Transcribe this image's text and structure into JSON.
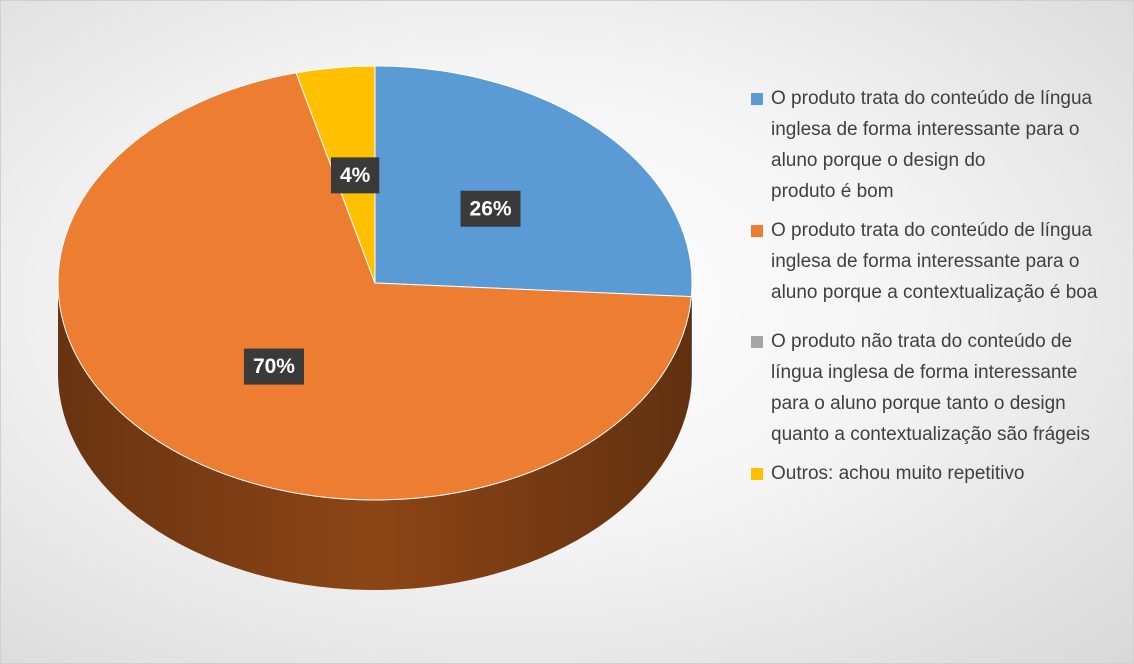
{
  "chart_data": {
    "type": "pie",
    "categories": [
      "O produto trata do conteúdo de língua inglesa de forma interessante para o aluno porque o design do\nproduto é bom",
      "O produto trata do conteúdo de língua inglesa de forma interessante para o aluno porque a contextualização é boa",
      "O produto não trata do conteúdo de língua inglesa de forma interessante para o aluno porque tanto o design quanto a contextualização são frágeis",
      "Outros: achou muito repetitivo"
    ],
    "values": [
      26,
      70,
      0,
      4
    ],
    "value_labels": [
      "26%",
      "70%",
      null,
      "4%"
    ],
    "colors": [
      "#5b9bd5",
      "#ed7d31",
      "#a5a5a5",
      "#ffc000"
    ],
    "side_colors": [
      "#3a6d9c",
      "#8c4516",
      "#6f6f6f",
      "#b38600"
    ],
    "legend": "right"
  }
}
